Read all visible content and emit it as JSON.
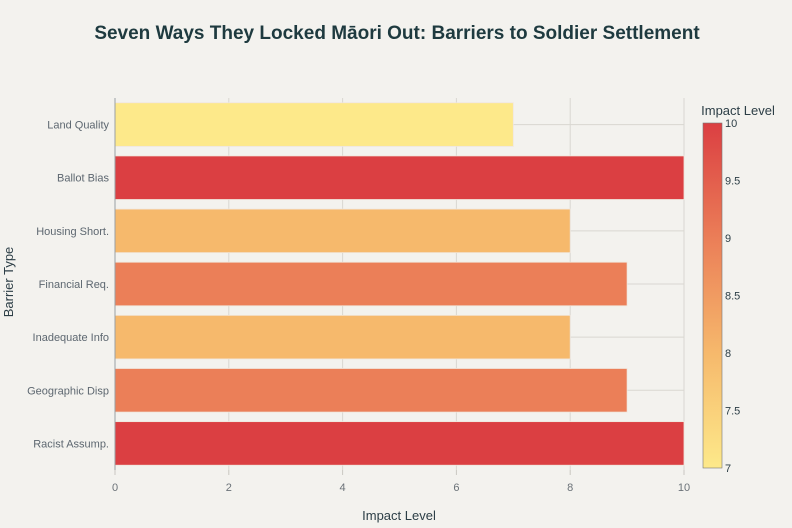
{
  "chart_data": {
    "type": "bar",
    "orientation": "horizontal",
    "title": "Seven Ways They Locked Māori Out: Barriers to Soldier Settlement",
    "xlabel": "Impact Level",
    "ylabel": "Barrier Type",
    "xlim": [
      0,
      10
    ],
    "xticks": [
      "0",
      "2",
      "4",
      "6",
      "8",
      "10"
    ],
    "grid": true,
    "categories": [
      "Land Quality",
      "Ballot Bias",
      "Housing Short.",
      "Financial Req.",
      "Inadequate Info",
      "Geographic Disp",
      "Racist Assump."
    ],
    "values": [
      7,
      10,
      8,
      9,
      8,
      9,
      10
    ],
    "colorbar": {
      "title": "Impact Level",
      "range": [
        7,
        10
      ],
      "ticks": [
        "10",
        "9.5",
        "9",
        "8.5",
        "8",
        "7.5",
        "7"
      ],
      "colorscale": [
        "#fde98a",
        "#f6b96c",
        "#eb7f58",
        "#db3f42"
      ]
    }
  }
}
